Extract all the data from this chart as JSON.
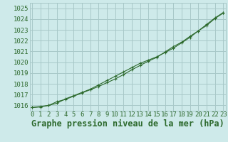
{
  "title": "Graphe pression niveau de la mer (hPa)",
  "background_color": "#ceeaea",
  "grid_color": "#a8c8c8",
  "line_color": "#2d6a2d",
  "x_values": [
    0,
    1,
    2,
    3,
    4,
    5,
    6,
    7,
    8,
    9,
    10,
    11,
    12,
    13,
    14,
    15,
    16,
    17,
    18,
    19,
    20,
    21,
    22,
    23
  ],
  "line1": [
    1015.8,
    1015.9,
    1016.0,
    1016.2,
    1016.6,
    1016.9,
    1017.2,
    1017.5,
    1017.9,
    1018.3,
    1018.7,
    1019.1,
    1019.5,
    1019.9,
    1020.2,
    1020.5,
    1020.9,
    1021.3,
    1021.8,
    1022.3,
    1022.9,
    1023.5,
    1024.1,
    1024.6
  ],
  "line2": [
    1015.8,
    1015.85,
    1016.0,
    1016.35,
    1016.55,
    1016.85,
    1017.15,
    1017.45,
    1017.75,
    1018.1,
    1018.45,
    1018.85,
    1019.3,
    1019.7,
    1020.1,
    1020.45,
    1020.95,
    1021.45,
    1021.85,
    1022.4,
    1022.9,
    1023.4,
    1024.05,
    1024.55
  ],
  "ylim_min": 1015.5,
  "ylim_max": 1025.5,
  "ytick_values": [
    1016,
    1017,
    1018,
    1019,
    1020,
    1021,
    1022,
    1023,
    1024,
    1025
  ],
  "title_fontsize": 8.5,
  "tick_fontsize": 6.5,
  "title_color": "#2d6a2d",
  "marker_size": 3.5,
  "linewidth": 0.8
}
